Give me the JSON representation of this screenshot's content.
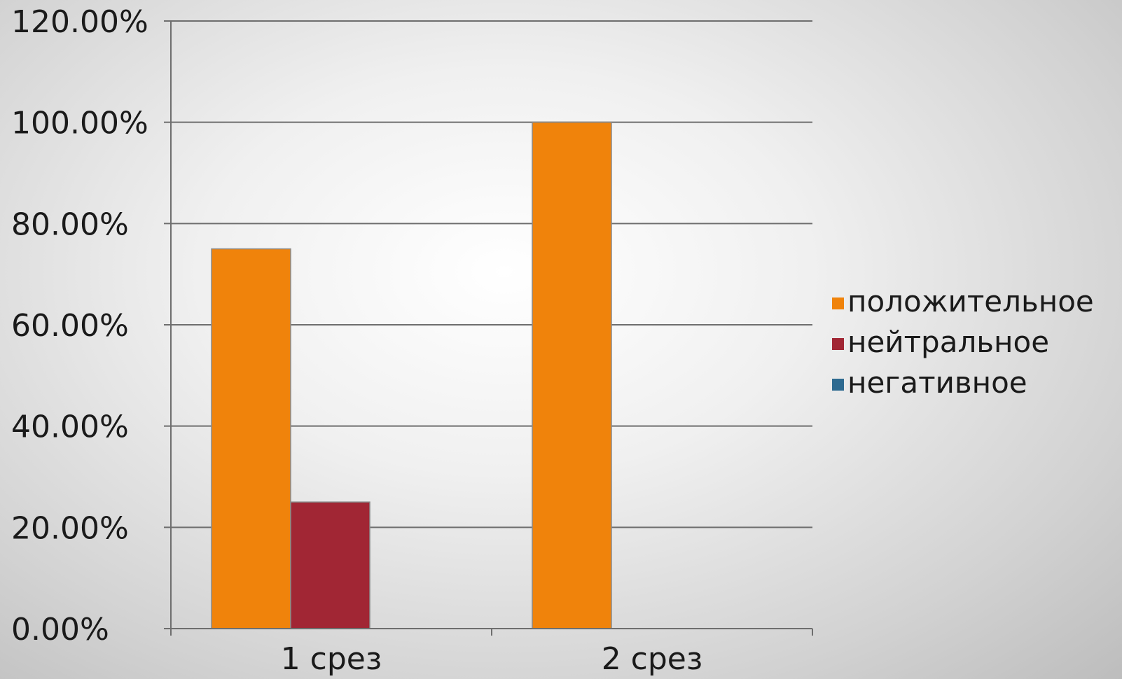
{
  "chart_data": {
    "type": "bar",
    "categories": [
      "1 срез",
      "2 срез"
    ],
    "series": [
      {
        "name": "положительное",
        "values": [
          75,
          100
        ],
        "color": "#F0830B"
      },
      {
        "name": "нейтральное",
        "values": [
          25,
          0
        ],
        "color": "#A12634"
      },
      {
        "name": "негативное",
        "values": [
          0,
          0
        ],
        "color": "#2E6A90"
      }
    ],
    "y_ticks": [
      "0.00%",
      "20.00%",
      "40.00%",
      "60.00%",
      "80.00%",
      "100.00%",
      "120.00%"
    ],
    "ylim": [
      0,
      120
    ],
    "grid": true,
    "legend_position": "right",
    "title": "",
    "xlabel": "",
    "ylabel": ""
  }
}
